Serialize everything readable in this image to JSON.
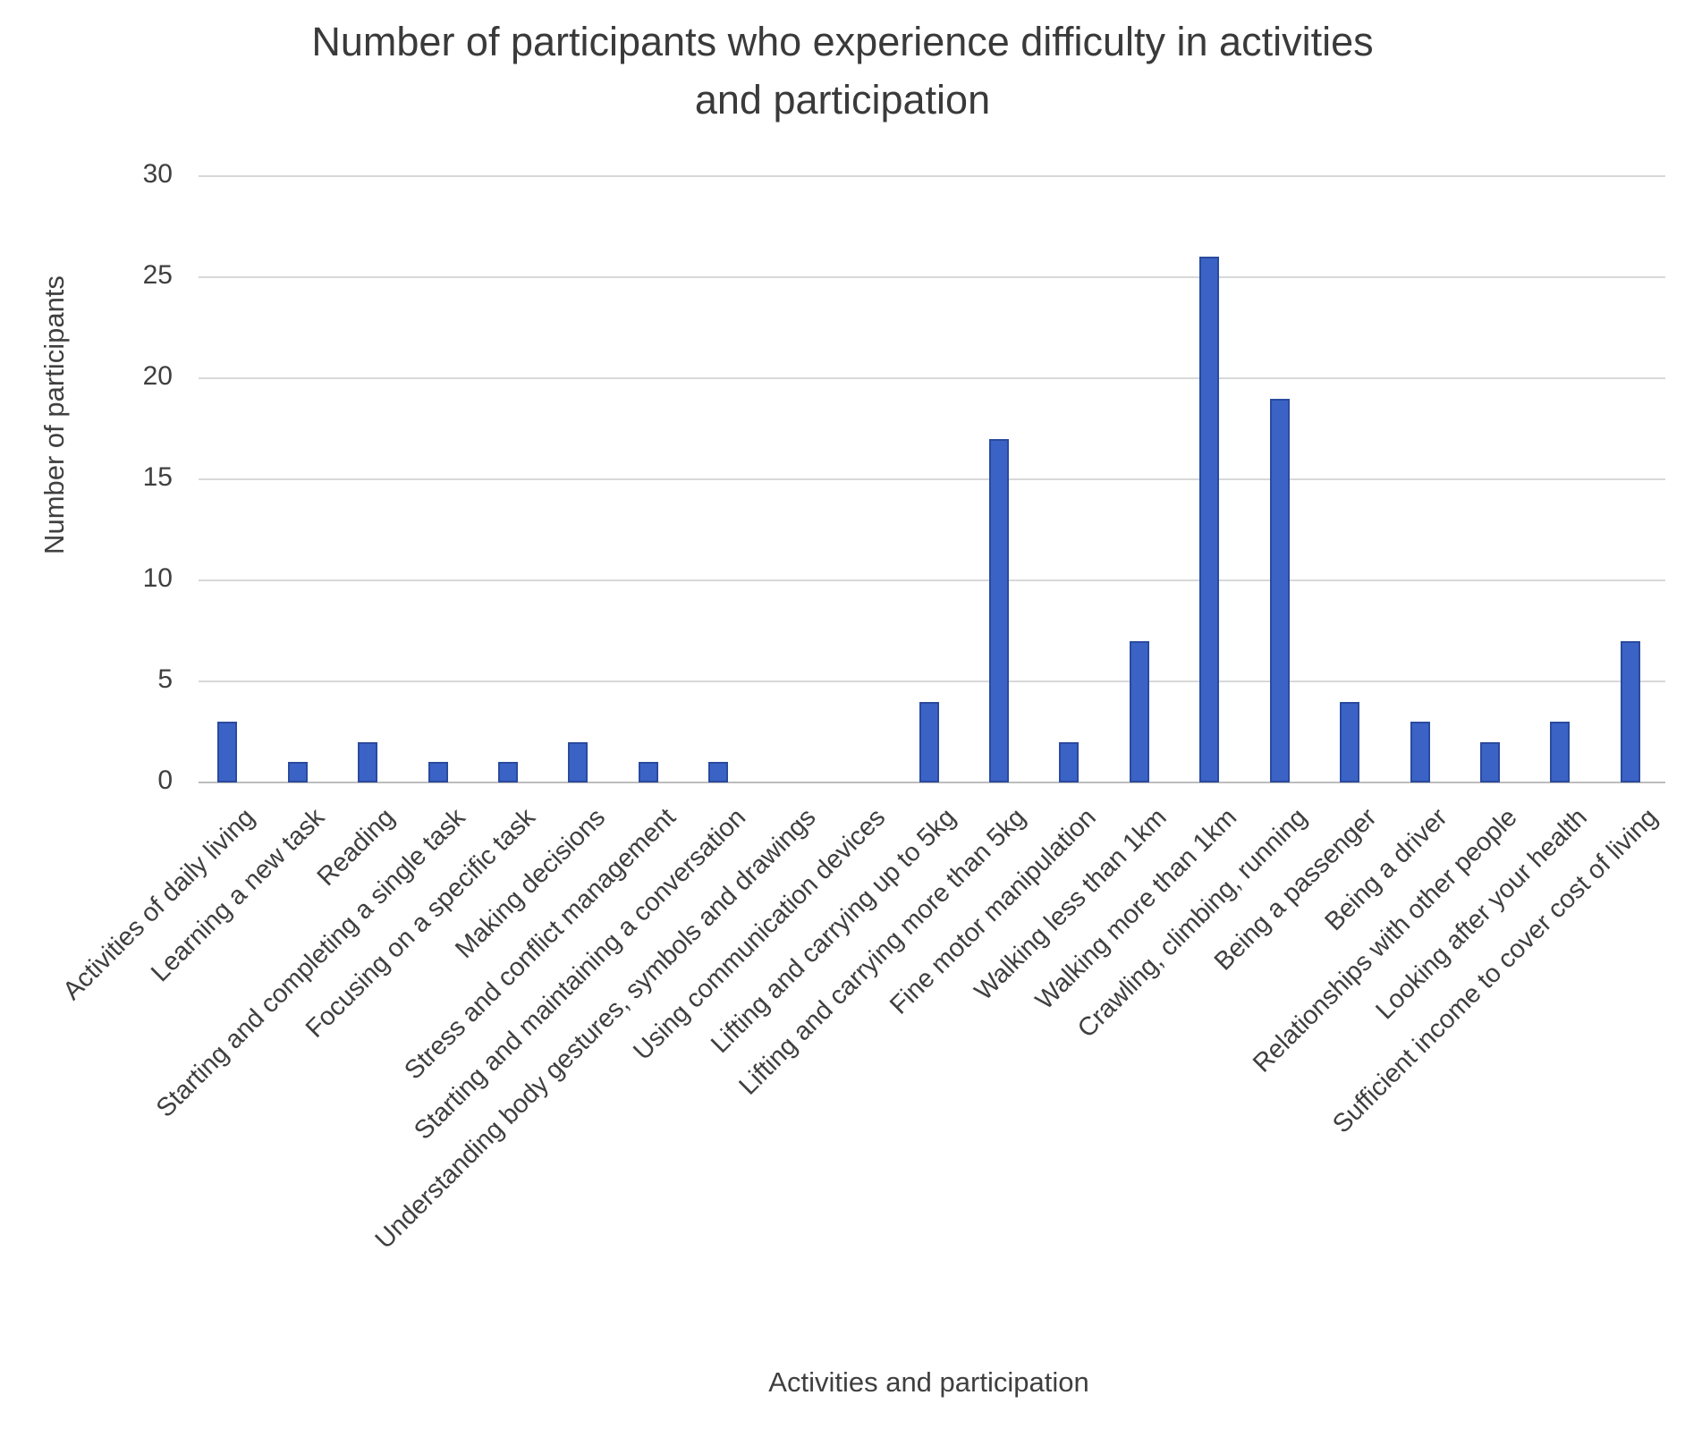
{
  "chart_data": {
    "type": "bar",
    "title": "Number of participants who experience difficulty in activities and participation",
    "title_lines": [
      "Number of participants who experience difficulty in activities",
      "and participation"
    ],
    "ylabel": "Number of participants",
    "xlabel": "Activities and participation",
    "categories": [
      "Activities of daily living",
      "Learning a new task",
      "Reading",
      "Starting and completing a single task",
      "Focusing on a specific task",
      "Making decisions",
      "Stress and conflict management",
      "Starting and maintaining a conversation",
      "Understanding body gestures, symbols and drawings",
      "Using communication devices",
      "Lifting and carrying up to 5kg",
      "Lifting and carrying more than 5kg",
      "Fine motor manipulation",
      "Walking less than 1km",
      "Walking more than 1km",
      "Crawling, climbing, running",
      "Being a passenger",
      "Being a driver",
      "Relationships with other people",
      "Looking after your health",
      "Sufficient income to cover cost of living"
    ],
    "values": [
      3,
      1,
      2,
      1,
      1,
      2,
      1,
      1,
      0,
      0,
      4,
      17,
      2,
      7,
      26,
      19,
      4,
      3,
      2,
      3,
      7
    ],
    "ylim": [
      0,
      30
    ],
    "yticks": [
      0,
      5,
      10,
      15,
      20,
      25,
      30
    ],
    "grid": "horizontal",
    "legend": "none",
    "bar_color": "#3b63c6",
    "bar_border_color": "#2a4a9e"
  }
}
